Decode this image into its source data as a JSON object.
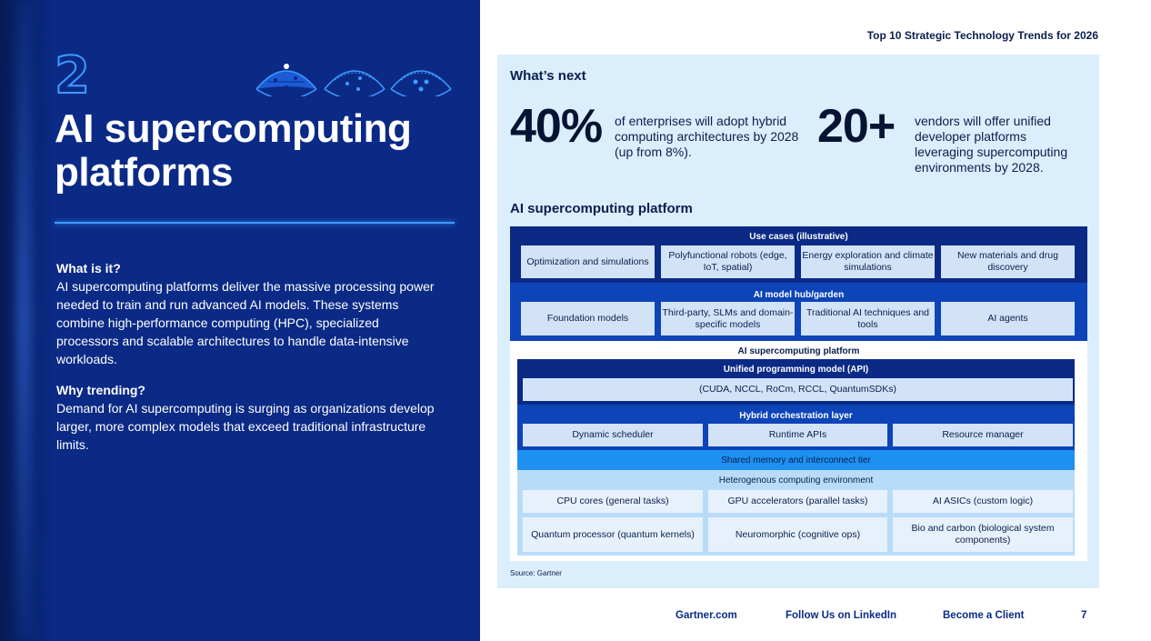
{
  "header": {
    "report_title": "Top 10 Strategic Technology Trends for 2026"
  },
  "left": {
    "trend_number": "2",
    "title": "AI supercomputing platforms",
    "what_is_it_heading": "What is it?",
    "what_is_it_text": "AI supercomputing platforms deliver the massive processing power needed to train and run advanced AI models. These systems combine high-performance computing (HPC), specialized processors and scalable architectures to handle data-intensive workloads.",
    "why_trending_heading": "Why trending?",
    "why_trending_text": "Demand for AI supercomputing is surging as organizations develop larger, more complex models that exceed traditional infrastructure limits.",
    "icons": [
      "theme-icon-1-active",
      "theme-icon-2",
      "theme-icon-3"
    ]
  },
  "whats_next": {
    "heading": "What’s next",
    "stats": [
      {
        "value": "40%",
        "text": "of enterprises will adopt hybrid computing architectures by 2028 (up from 8%)."
      },
      {
        "value": "20+",
        "text": "vendors will offer unified developer platforms leveraging supercomputing environments by 2028."
      }
    ]
  },
  "architecture": {
    "title": "AI supercomputing platform",
    "use_cases": {
      "label": "Use cases (illustrative)",
      "items": [
        "Optimization and simulations",
        "Polyfunctional robots (edge, IoT, spatial)",
        "Energy exploration and climate simulations",
        "New materials and drug discovery"
      ]
    },
    "model_hub": {
      "label": "AI model hub/garden",
      "items": [
        "Foundation models",
        "Third-party, SLMs and domain-specific models",
        "Traditional AI techniques and tools",
        "AI agents"
      ]
    },
    "platform": {
      "label": "AI supercomputing platform",
      "api": {
        "label": "Unified programming model (API)",
        "item": "(CUDA, NCCL, RoCm, RCCL, QuantumSDKs)"
      },
      "orchestration": {
        "label": "Hybrid orchestration layer",
        "items": [
          "Dynamic scheduler",
          "Runtime APIs",
          "Resource manager"
        ]
      },
      "shared_memory": {
        "label": "Shared memory and interconnect tier"
      },
      "hetero": {
        "label": "Heterogenous computing environment",
        "row1": [
          "CPU cores (general tasks)",
          "GPU accelerators (parallel tasks)",
          "AI ASICs (custom logic)"
        ],
        "row2": [
          "Quantum processor (quantum kernels)",
          "Neuromorphic (cognitive ops)",
          "Bio and carbon (biological system components)"
        ]
      }
    },
    "source": "Source: Gartner"
  },
  "footer": {
    "links": [
      "Gartner.com",
      "Follow Us on LinkedIn",
      "Become a Client"
    ],
    "page_number": "7"
  },
  "colors": {
    "navy": "#0a2a86",
    "accent": "#3f9bff",
    "panel": "#dbeefb"
  }
}
